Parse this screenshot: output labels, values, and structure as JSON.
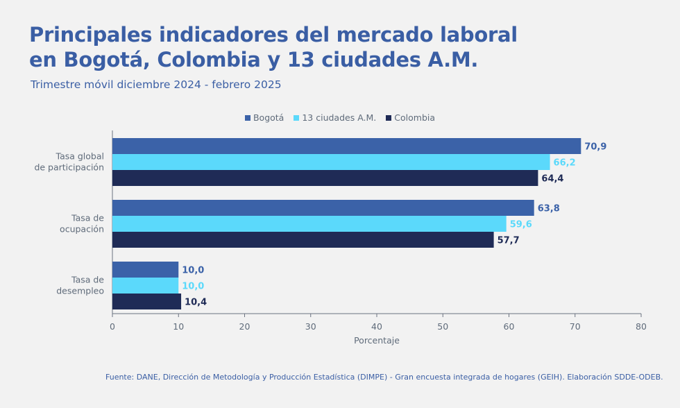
{
  "title_line1": "Principales indicadores del mercado laboral",
  "title_line2": "en Bogotá, Colombia y 13 ciudades A.M.",
  "subtitle": "Trimestre móvil diciembre 2024 - febrero 2025",
  "source": "Fuente: DANE, Dirección de Metodología y Producción Estadística (DIMPE) - Gran encuesta integrada de hogares (GEIH). Elaboración SDDE-ODEB.",
  "colors": {
    "bogota": "#3b62a8",
    "ciudades": "#5bd9fb",
    "colombia": "#1f2b56",
    "axis": "#5f6b7a"
  },
  "chart_data": {
    "type": "bar",
    "orientation": "horizontal",
    "categories": [
      [
        "Tasa global",
        "de participación"
      ],
      [
        "Tasa de",
        "ocupación"
      ],
      [
        "Tasa de",
        "desempleo"
      ]
    ],
    "series": [
      {
        "name": "Bogotá",
        "values": [
          70.9,
          63.8,
          10.0
        ],
        "labels": [
          "70,9",
          "63,8",
          "10,0"
        ]
      },
      {
        "name": "13 ciudades A.M.",
        "values": [
          66.2,
          59.6,
          10.0
        ],
        "labels": [
          "66,2",
          "59,6",
          "10,0"
        ]
      },
      {
        "name": "Colombia",
        "values": [
          64.4,
          57.7,
          10.4
        ],
        "labels": [
          "64,4",
          "57,7",
          "10,4"
        ]
      }
    ],
    "xlabel": "Porcentaje",
    "xlim": [
      0,
      80
    ],
    "xticks": [
      0,
      10,
      20,
      30,
      40,
      50,
      60,
      70,
      80
    ],
    "legend_position": "top-center",
    "grid": false
  }
}
